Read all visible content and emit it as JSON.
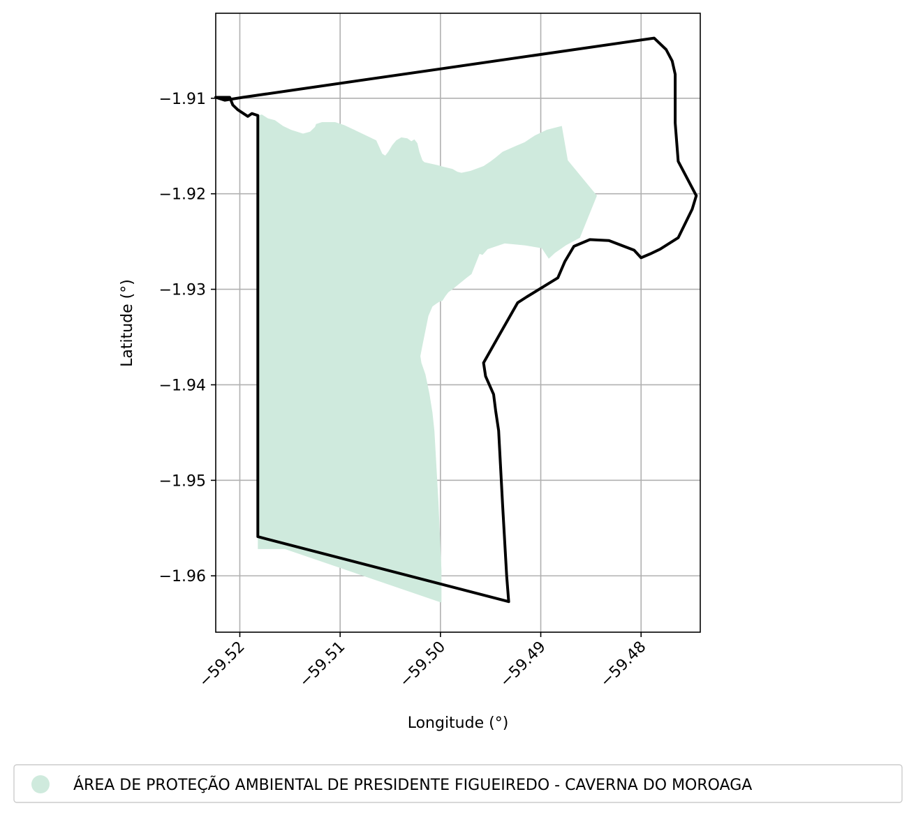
{
  "chart_data": {
    "type": "map",
    "xlabel": "Longitude (°)",
    "ylabel": "Latitude (°)",
    "xlim": [
      -59.5224,
      -59.4741
    ],
    "ylim": [
      -1.9659,
      -1.9011
    ],
    "xticks": [
      {
        "value": -59.52,
        "label": "−59.52"
      },
      {
        "value": -59.51,
        "label": "−59.51"
      },
      {
        "value": -59.5,
        "label": "−59.50"
      },
      {
        "value": -59.49,
        "label": "−59.49"
      },
      {
        "value": -59.48,
        "label": "−59.48"
      }
    ],
    "yticks": [
      {
        "value": -1.91,
        "label": "−1.91"
      },
      {
        "value": -1.92,
        "label": "−1.92"
      },
      {
        "value": -1.93,
        "label": "−1.93"
      },
      {
        "value": -1.94,
        "label": "−1.94"
      },
      {
        "value": -1.95,
        "label": "−1.95"
      },
      {
        "value": -1.96,
        "label": "−1.96"
      }
    ],
    "grid": true,
    "legend_placement": "bottom-center",
    "legend": [
      {
        "label": "ÁREA DE PROTEÇÃO AMBIENTAL DE PRESIDENTE FIGUEIREDO - CAVERNA DO MOROAGA",
        "color": "#cfeadd",
        "marker": "circle"
      }
    ],
    "fill_color": "#cfeadd",
    "outline_color": "#000000",
    "filled_area": [
      [
        -59.5178,
        -1.9117
      ],
      [
        -59.5172,
        -1.9121
      ],
      [
        -59.5165,
        -1.9123
      ],
      [
        -59.5157,
        -1.9129
      ],
      [
        -59.5149,
        -1.9133
      ],
      [
        -59.5137,
        -1.9137
      ],
      [
        -59.513,
        -1.9135
      ],
      [
        -59.5125,
        -1.913
      ],
      [
        -59.5124,
        -1.9127
      ],
      [
        -59.5118,
        -1.9125
      ],
      [
        -59.5105,
        -1.9125
      ],
      [
        -59.5096,
        -1.9128
      ],
      [
        -59.5088,
        -1.9132
      ],
      [
        -59.5078,
        -1.9137
      ],
      [
        -59.5064,
        -1.9144
      ],
      [
        -59.5061,
        -1.9151
      ],
      [
        -59.5058,
        -1.9158
      ],
      [
        -59.5055,
        -1.916
      ],
      [
        -59.5052,
        -1.9156
      ],
      [
        -59.5048,
        -1.9149
      ],
      [
        -59.5044,
        -1.9144
      ],
      [
        -59.5039,
        -1.9141
      ],
      [
        -59.5033,
        -1.9142
      ],
      [
        -59.5029,
        -1.9145
      ],
      [
        -59.5026,
        -1.9143
      ],
      [
        -59.5023,
        -1.9147
      ],
      [
        -59.5021,
        -1.9156
      ],
      [
        -59.5019,
        -1.9162
      ],
      [
        -59.5018,
        -1.9165
      ],
      [
        -59.5016,
        -1.9167
      ],
      [
        -59.5003,
        -1.917
      ],
      [
        -59.4996,
        -1.9172
      ],
      [
        -59.4988,
        -1.9174
      ],
      [
        -59.4983,
        -1.9177
      ],
      [
        -59.4979,
        -1.9178
      ],
      [
        -59.497,
        -1.9176
      ],
      [
        -59.4957,
        -1.9171
      ],
      [
        -59.495,
        -1.9166
      ],
      [
        -59.4945,
        -1.9162
      ],
      [
        -59.4938,
        -1.9156
      ],
      [
        -59.4925,
        -1.915
      ],
      [
        -59.4916,
        -1.9146
      ],
      [
        -59.4906,
        -1.9139
      ],
      [
        -59.4894,
        -1.9133
      ],
      [
        -59.4879,
        -1.9129
      ],
      [
        -59.4873,
        -1.9165
      ],
      [
        -59.4844,
        -1.9202
      ],
      [
        -59.4861,
        -1.9246
      ],
      [
        -59.4875,
        -1.9254
      ],
      [
        -59.4886,
        -1.9262
      ],
      [
        -59.4892,
        -1.9268
      ],
      [
        -59.4899,
        -1.9257
      ],
      [
        -59.4916,
        -1.9254
      ],
      [
        -59.4936,
        -1.9252
      ],
      [
        -59.4953,
        -1.9258
      ],
      [
        -59.4958,
        -1.9264
      ],
      [
        -59.4961,
        -1.9263
      ],
      [
        -59.4969,
        -1.9284
      ],
      [
        -59.4974,
        -1.9288
      ],
      [
        -59.4988,
        -1.93
      ],
      [
        -59.4992,
        -1.9303
      ],
      [
        -59.4995,
        -1.9307
      ],
      [
        -59.4998,
        -1.9312
      ],
      [
        -59.5001,
        -1.9313
      ],
      [
        -59.5004,
        -1.9315
      ],
      [
        -59.5008,
        -1.9318
      ],
      [
        -59.5012,
        -1.9328
      ],
      [
        -59.5018,
        -1.9359
      ],
      [
        -59.502,
        -1.937
      ],
      [
        -59.5019,
        -1.9377
      ],
      [
        -59.5015,
        -1.9389
      ],
      [
        -59.5011,
        -1.9409
      ],
      [
        -59.5008,
        -1.9429
      ],
      [
        -59.5006,
        -1.9448
      ],
      [
        -59.5002,
        -1.9523
      ],
      [
        -59.4999,
        -1.9594
      ],
      [
        -59.4999,
        -1.9628
      ],
      [
        -59.5155,
        -1.9572
      ],
      [
        -59.5182,
        -1.9572
      ],
      [
        -59.5182,
        -1.9118
      ]
    ],
    "boundary": [
      [
        -59.5224,
        -1.9099
      ],
      [
        -59.5215,
        -1.9102
      ],
      [
        -59.5197,
        -1.9099
      ],
      [
        -59.4787,
        -1.9037
      ],
      [
        -59.4775,
        -1.9049
      ],
      [
        -59.4769,
        -1.9061
      ],
      [
        -59.4766,
        -1.9075
      ],
      [
        -59.4766,
        -1.9126
      ],
      [
        -59.4763,
        -1.9166
      ],
      [
        -59.4745,
        -1.9202
      ],
      [
        -59.4749,
        -1.9216
      ],
      [
        -59.4763,
        -1.9246
      ],
      [
        -59.4781,
        -1.9258
      ],
      [
        -59.4791,
        -1.9263
      ],
      [
        -59.48,
        -1.9267
      ],
      [
        -59.4807,
        -1.9259
      ],
      [
        -59.4832,
        -1.9249
      ],
      [
        -59.4851,
        -1.9248
      ],
      [
        -59.4867,
        -1.9255
      ],
      [
        -59.4876,
        -1.9271
      ],
      [
        -59.4883,
        -1.9288
      ],
      [
        -59.4914,
        -1.9308
      ],
      [
        -59.4923,
        -1.9314
      ],
      [
        -59.4942,
        -1.9349
      ],
      [
        -59.4957,
        -1.9377
      ],
      [
        -59.4955,
        -1.9391
      ],
      [
        -59.4947,
        -1.941
      ],
      [
        -59.4945,
        -1.9427
      ],
      [
        -59.4942,
        -1.9448
      ],
      [
        -59.4938,
        -1.9526
      ],
      [
        -59.4934,
        -1.96
      ],
      [
        -59.4932,
        -1.9627
      ],
      [
        -59.5182,
        -1.9559
      ],
      [
        -59.5182,
        -1.9118
      ],
      [
        -59.5188,
        -1.9116
      ],
      [
        -59.5192,
        -1.9119
      ],
      [
        -59.5202,
        -1.9112
      ],
      [
        -59.5207,
        -1.9107
      ],
      [
        -59.521,
        -1.9099
      ],
      [
        -59.5224,
        -1.9099
      ]
    ]
  }
}
